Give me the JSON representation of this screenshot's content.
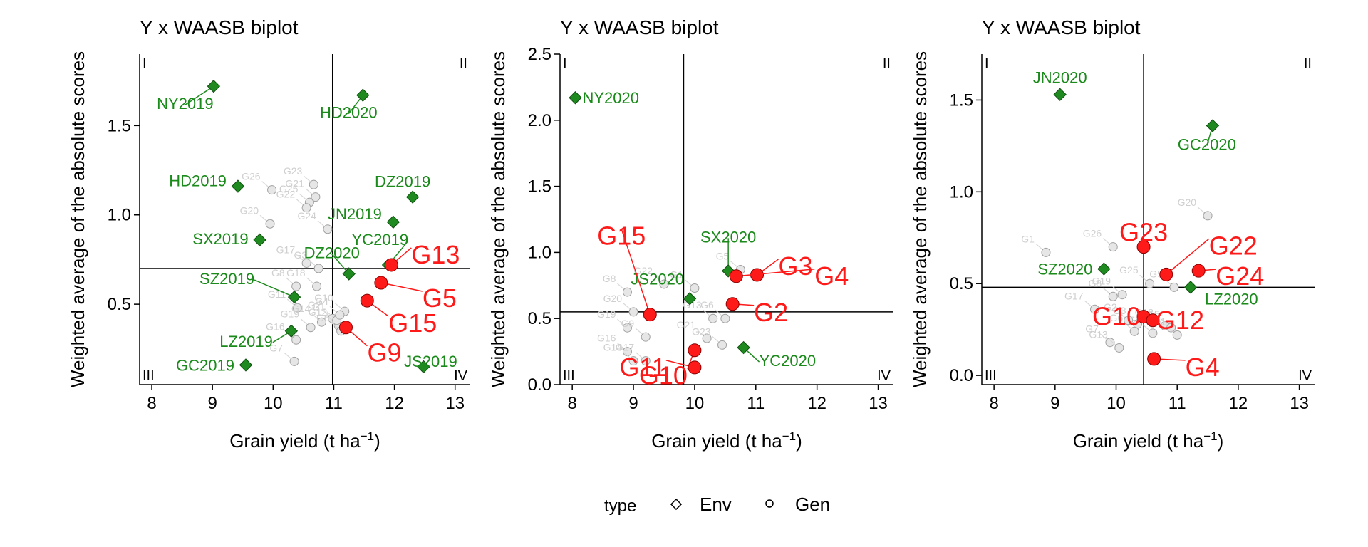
{
  "colors": {
    "env": "#1f8a1f",
    "env_text": "#1a8a1a",
    "gen_red": "#ff1a1a",
    "gen_grey": "#cfcfcf",
    "axis": "#000000"
  },
  "legend": {
    "title": "type",
    "items": [
      "Env",
      "Gen"
    ]
  },
  "chart_data": [
    {
      "type": "scatter",
      "title": "Y x WAASB biplot",
      "xlabel_main": "Grain yield (t ha",
      "xlabel_sup": "−1",
      "xlabel_tail": ")",
      "ylabel": "Weighted average of the absolute scores",
      "xlim": [
        7.8,
        13.25
      ],
      "ylim": [
        0.05,
        1.9
      ],
      "xticks": [
        8,
        9,
        10,
        11,
        12,
        13
      ],
      "yticks": [
        0.5,
        1.0,
        1.5
      ],
      "ytick_labels": [
        "0.5",
        "1.0",
        "1.5"
      ],
      "vline": 10.98,
      "hline": 0.7,
      "quadrants": [
        "I",
        "II",
        "III",
        "IV"
      ],
      "env": [
        {
          "name": "NY2019",
          "x": 9.02,
          "y": 1.72
        },
        {
          "name": "HD2020",
          "x": 11.48,
          "y": 1.67
        },
        {
          "name": "HD2019",
          "x": 9.42,
          "y": 1.16
        },
        {
          "name": "DZ2019",
          "x": 12.3,
          "y": 1.1
        },
        {
          "name": "JN2019",
          "x": 11.98,
          "y": 0.96
        },
        {
          "name": "SX2019",
          "x": 9.78,
          "y": 0.86
        },
        {
          "name": "DZ2020",
          "x": 11.25,
          "y": 0.67
        },
        {
          "name": "YC2019",
          "x": 11.9,
          "y": 0.72
        },
        {
          "name": "SZ2019",
          "x": 10.35,
          "y": 0.54
        },
        {
          "name": "LZ2019",
          "x": 10.3,
          "y": 0.35
        },
        {
          "name": "GC2019",
          "x": 9.55,
          "y": 0.16
        },
        {
          "name": "JS2019",
          "x": 12.48,
          "y": 0.15
        }
      ],
      "gen_highlight": [
        {
          "name": "G13",
          "x": 11.95,
          "y": 0.72
        },
        {
          "name": "G5",
          "x": 11.78,
          "y": 0.62
        },
        {
          "name": "G15",
          "x": 11.55,
          "y": 0.52
        },
        {
          "name": "G9",
          "x": 11.2,
          "y": 0.37
        }
      ],
      "gen_other": [
        {
          "name": "G26",
          "x": 9.98,
          "y": 1.14
        },
        {
          "name": "G25",
          "x": 10.6,
          "y": 1.07
        },
        {
          "name": "G23",
          "x": 10.67,
          "y": 1.17
        },
        {
          "name": "G21",
          "x": 10.7,
          "y": 1.1
        },
        {
          "name": "G20",
          "x": 9.95,
          "y": 0.95
        },
        {
          "name": "G22",
          "x": 10.55,
          "y": 1.04
        },
        {
          "name": "G24",
          "x": 10.9,
          "y": 0.92
        },
        {
          "name": "G17",
          "x": 10.55,
          "y": 0.73
        },
        {
          "name": "G18",
          "x": 10.72,
          "y": 0.6
        },
        {
          "name": "G8",
          "x": 10.38,
          "y": 0.6
        },
        {
          "name": "G11",
          "x": 10.4,
          "y": 0.48
        },
        {
          "name": "G16",
          "x": 10.38,
          "y": 0.3
        },
        {
          "name": "G2",
          "x": 10.98,
          "y": 0.42
        },
        {
          "name": "G12",
          "x": 11.08,
          "y": 0.38
        },
        {
          "name": "G7",
          "x": 10.35,
          "y": 0.18
        },
        {
          "name": "G14",
          "x": 10.8,
          "y": 0.4
        },
        {
          "name": "G6",
          "x": 11.12,
          "y": 0.35
        },
        {
          "name": "G1",
          "x": 11.05,
          "y": 0.41
        },
        {
          "name": "G3",
          "x": 10.75,
          "y": 0.7
        },
        {
          "name": "G10",
          "x": 11.18,
          "y": 0.46
        },
        {
          "name": "G4",
          "x": 11.1,
          "y": 0.44
        },
        {
          "name": "G19",
          "x": 10.62,
          "y": 0.37
        }
      ]
    },
    {
      "type": "scatter",
      "title": "Y x WAASB biplot",
      "xlabel_main": "Grain yield (t ha",
      "xlabel_sup": "−1",
      "xlabel_tail": ")",
      "ylabel": "Weighted average of the absolute scores",
      "xlim": [
        7.8,
        13.25
      ],
      "ylim": [
        0.0,
        2.5
      ],
      "xticks": [
        8,
        9,
        10,
        11,
        12,
        13
      ],
      "yticks": [
        0.0,
        0.5,
        1.0,
        1.5,
        2.0,
        2.5
      ],
      "ytick_labels": [
        "0.0",
        "0.5",
        "1.0",
        "1.5",
        "2.0",
        "2.5"
      ],
      "vline": 9.82,
      "hline": 0.55,
      "quadrants": [
        "I",
        "II",
        "III",
        "IV"
      ],
      "env": [
        {
          "name": "NY2020",
          "x": 8.05,
          "y": 2.17
        },
        {
          "name": "SX2020",
          "x": 10.55,
          "y": 0.86
        },
        {
          "name": "JS2020",
          "x": 9.92,
          "y": 0.65
        },
        {
          "name": "YC2020",
          "x": 10.8,
          "y": 0.28
        }
      ],
      "gen_highlight": [
        {
          "name": "G15",
          "x": 9.27,
          "y": 0.53
        },
        {
          "name": "G3",
          "x": 11.02,
          "y": 0.83
        },
        {
          "name": "G4",
          "x": 10.68,
          "y": 0.82
        },
        {
          "name": "G2",
          "x": 10.62,
          "y": 0.61
        },
        {
          "name": "G10",
          "x": 10.0,
          "y": 0.26
        },
        {
          "name": "G11",
          "x": 10.0,
          "y": 0.13
        }
      ],
      "gen_other": [
        {
          "name": "G22",
          "x": 9.5,
          "y": 0.76
        },
        {
          "name": "G1",
          "x": 10.0,
          "y": 0.73
        },
        {
          "name": "G5",
          "x": 10.75,
          "y": 0.87
        },
        {
          "name": "G8",
          "x": 8.9,
          "y": 0.7
        },
        {
          "name": "G20",
          "x": 9.0,
          "y": 0.55
        },
        {
          "name": "G19",
          "x": 8.9,
          "y": 0.43
        },
        {
          "name": "G9",
          "x": 9.2,
          "y": 0.36
        },
        {
          "name": "G16",
          "x": 8.9,
          "y": 0.25
        },
        {
          "name": "G14",
          "x": 9.0,
          "y": 0.18
        },
        {
          "name": "G13",
          "x": 10.3,
          "y": 0.5
        },
        {
          "name": "G6",
          "x": 10.5,
          "y": 0.5
        },
        {
          "name": "G21",
          "x": 10.2,
          "y": 0.35
        },
        {
          "name": "G23",
          "x": 10.45,
          "y": 0.3
        },
        {
          "name": "G17",
          "x": 9.2,
          "y": 0.18
        }
      ]
    },
    {
      "type": "scatter",
      "title": "Y x WAASB biplot",
      "xlabel_main": "Grain yield (t ha",
      "xlabel_sup": "−1",
      "xlabel_tail": ")",
      "ylabel": "Weighted average of the absolute scores",
      "xlim": [
        7.8,
        13.25
      ],
      "ylim": [
        -0.05,
        1.75
      ],
      "xticks": [
        8,
        9,
        10,
        11,
        12,
        13
      ],
      "yticks": [
        0.0,
        0.5,
        1.0,
        1.5
      ],
      "ytick_labels": [
        "0.0",
        "0.5",
        "1.0",
        "1.5"
      ],
      "vline": 10.45,
      "hline": 0.48,
      "quadrants": [
        "I",
        "II",
        "III",
        "IV"
      ],
      "env": [
        {
          "name": "JN2020",
          "x": 9.08,
          "y": 1.53
        },
        {
          "name": "GC2020",
          "x": 11.58,
          "y": 1.36
        },
        {
          "name": "SZ2020",
          "x": 9.8,
          "y": 0.58
        },
        {
          "name": "LZ2020",
          "x": 11.22,
          "y": 0.48
        }
      ],
      "gen_highlight": [
        {
          "name": "G23",
          "x": 10.45,
          "y": 0.7
        },
        {
          "name": "G22",
          "x": 10.82,
          "y": 0.55
        },
        {
          "name": "G24",
          "x": 11.35,
          "y": 0.57
        },
        {
          "name": "G4",
          "x": 10.62,
          "y": 0.09
        },
        {
          "name": "G10",
          "x": 10.45,
          "y": 0.32
        },
        {
          "name": "G12",
          "x": 10.6,
          "y": 0.3
        }
      ],
      "gen_other": [
        {
          "name": "G20",
          "x": 11.5,
          "y": 0.87
        },
        {
          "name": "G26",
          "x": 9.95,
          "y": 0.7
        },
        {
          "name": "G1",
          "x": 8.85,
          "y": 0.67
        },
        {
          "name": "G19",
          "x": 10.1,
          "y": 0.44
        },
        {
          "name": "G8",
          "x": 9.95,
          "y": 0.43
        },
        {
          "name": "G17",
          "x": 9.65,
          "y": 0.36
        },
        {
          "name": "G25",
          "x": 10.55,
          "y": 0.5
        },
        {
          "name": "G5",
          "x": 10.95,
          "y": 0.48
        },
        {
          "name": "G7",
          "x": 9.9,
          "y": 0.18
        },
        {
          "name": "G13",
          "x": 10.05,
          "y": 0.15
        },
        {
          "name": "G9",
          "x": 10.6,
          "y": 0.23
        },
        {
          "name": "G18",
          "x": 10.8,
          "y": 0.27
        },
        {
          "name": "G15",
          "x": 10.9,
          "y": 0.26
        },
        {
          "name": "G11",
          "x": 11.0,
          "y": 0.22
        },
        {
          "name": "G3",
          "x": 10.35,
          "y": 0.28
        },
        {
          "name": "G6",
          "x": 10.3,
          "y": 0.24
        },
        {
          "name": "G2",
          "x": 10.2,
          "y": 0.3
        }
      ]
    }
  ]
}
